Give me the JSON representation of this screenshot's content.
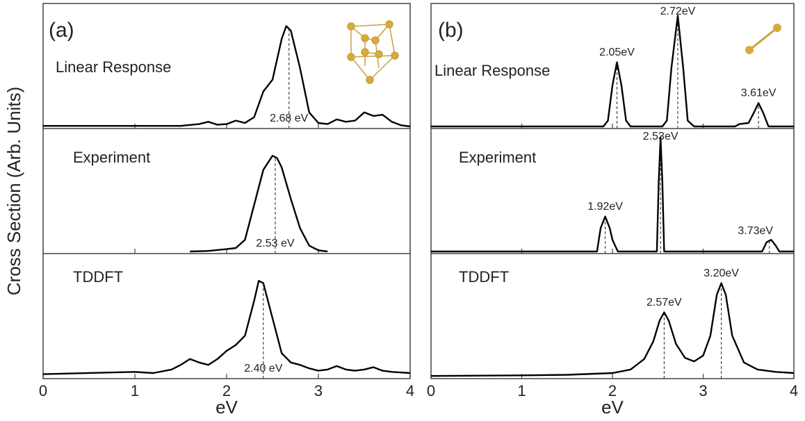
{
  "chart_data": [
    {
      "type": "line",
      "panel_label": "(a)",
      "ylabel": "Cross Section (Arb. Units)",
      "xlabel": "eV",
      "xlim": [
        0,
        4
      ],
      "xticks": [
        0,
        1,
        2,
        3,
        4
      ],
      "ylim": [
        0,
        1
      ],
      "series": [
        {
          "name": "Linear Response",
          "color": "#000000",
          "x": [
            0,
            0.5,
            1.0,
            1.5,
            1.7,
            1.8,
            1.9,
            2.0,
            2.1,
            2.2,
            2.3,
            2.4,
            2.5,
            2.6,
            2.65,
            2.7,
            2.8,
            2.9,
            3.0,
            3.1,
            3.2,
            3.3,
            3.4,
            3.5,
            3.6,
            3.7,
            3.8,
            3.9,
            4.0
          ],
          "values": [
            0.005,
            0.005,
            0.005,
            0.005,
            0.02,
            0.04,
            0.015,
            0.02,
            0.05,
            0.03,
            0.08,
            0.3,
            0.4,
            0.75,
            0.86,
            0.82,
            0.5,
            0.12,
            0.03,
            0.02,
            0.06,
            0.04,
            0.05,
            0.12,
            0.09,
            0.1,
            0.04,
            0.01,
            0
          ],
          "annotations": [
            {
              "x": 2.68,
              "label": "2.68 eV"
            }
          ]
        },
        {
          "name": "Experiment",
          "color": "#000000",
          "x": [
            1.6,
            1.8,
            2.0,
            2.1,
            2.2,
            2.3,
            2.4,
            2.5,
            2.55,
            2.6,
            2.7,
            2.8,
            2.9,
            3.0,
            3.1
          ],
          "values": [
            0,
            0.005,
            0.02,
            0.03,
            0.1,
            0.4,
            0.7,
            0.82,
            0.8,
            0.72,
            0.45,
            0.2,
            0.05,
            0.01,
            0
          ],
          "annotations": [
            {
              "x": 2.53,
              "label": "2.53 eV"
            }
          ]
        },
        {
          "name": "TDDFT",
          "color": "#000000",
          "x": [
            0,
            1.0,
            1.2,
            1.4,
            1.5,
            1.6,
            1.7,
            1.8,
            1.9,
            2.0,
            2.1,
            2.2,
            2.3,
            2.35,
            2.4,
            2.5,
            2.6,
            2.7,
            2.8,
            2.9,
            3.0,
            3.1,
            3.2,
            3.3,
            3.4,
            3.5,
            3.6,
            3.7,
            3.8,
            4.0
          ],
          "values": [
            0.02,
            0.04,
            0.03,
            0.06,
            0.1,
            0.15,
            0.12,
            0.1,
            0.15,
            0.22,
            0.27,
            0.35,
            0.65,
            0.82,
            0.8,
            0.5,
            0.2,
            0.12,
            0.1,
            0.07,
            0.05,
            0.06,
            0.09,
            0.06,
            0.05,
            0.06,
            0.08,
            0.05,
            0.04,
            0.03
          ],
          "annotations": [
            {
              "x": 2.4,
              "label": "2.40 eV"
            }
          ]
        }
      ]
    },
    {
      "type": "line",
      "panel_label": "(b)",
      "xlabel": "eV",
      "xlim": [
        0,
        4
      ],
      "xticks": [
        0,
        1,
        2,
        3,
        4
      ],
      "ylim": [
        0,
        1
      ],
      "series": [
        {
          "name": "Linear Response",
          "color": "#000000",
          "x": [
            0,
            1.9,
            1.95,
            2.0,
            2.05,
            2.1,
            2.15,
            2.2,
            2.55,
            2.6,
            2.65,
            2.72,
            2.78,
            2.83,
            2.9,
            3.35,
            3.4,
            3.5,
            3.56,
            3.61,
            3.66,
            3.72,
            4.0
          ],
          "values": [
            0,
            0,
            0.05,
            0.35,
            0.55,
            0.35,
            0.05,
            0,
            0,
            0.05,
            0.5,
            0.95,
            0.5,
            0.05,
            0,
            0,
            0.02,
            0.03,
            0.12,
            0.2,
            0.12,
            0,
            0
          ],
          "annotations": [
            {
              "x": 2.05,
              "label": "2.05eV"
            },
            {
              "x": 2.72,
              "label": "2.72eV"
            },
            {
              "x": 3.61,
              "label": "3.61eV"
            }
          ]
        },
        {
          "name": "Experiment",
          "color": "#000000",
          "x": [
            0,
            1.83,
            1.87,
            1.92,
            1.97,
            2.0,
            2.03,
            2.06,
            2.49,
            2.51,
            2.53,
            2.55,
            2.57,
            3.65,
            3.7,
            3.75,
            3.8,
            3.84,
            4.0
          ],
          "values": [
            0,
            0,
            0.2,
            0.3,
            0.2,
            0.1,
            0.05,
            0,
            0,
            0.6,
            0.98,
            0.6,
            0,
            0,
            0.08,
            0.1,
            0.05,
            0,
            0
          ],
          "annotations": [
            {
              "x": 1.92,
              "label": "1.92eV"
            },
            {
              "x": 2.53,
              "label": "2.53eV"
            },
            {
              "x": 3.73,
              "label": "3.73eV"
            }
          ]
        },
        {
          "name": "TDDFT",
          "color": "#000000",
          "x": [
            0,
            1.0,
            1.5,
            2.0,
            2.2,
            2.35,
            2.45,
            2.52,
            2.57,
            2.62,
            2.7,
            2.8,
            2.9,
            3.0,
            3.08,
            3.15,
            3.2,
            3.25,
            3.32,
            3.45,
            3.6,
            3.8,
            4.0
          ],
          "values": [
            0.005,
            0.01,
            0.015,
            0.03,
            0.06,
            0.15,
            0.3,
            0.48,
            0.55,
            0.48,
            0.28,
            0.16,
            0.13,
            0.18,
            0.35,
            0.7,
            0.8,
            0.7,
            0.35,
            0.12,
            0.06,
            0.04,
            0.03
          ],
          "annotations": [
            {
              "x": 2.57,
              "label": "2.57eV"
            },
            {
              "x": 3.2,
              "label": "3.20eV"
            }
          ]
        }
      ]
    }
  ]
}
